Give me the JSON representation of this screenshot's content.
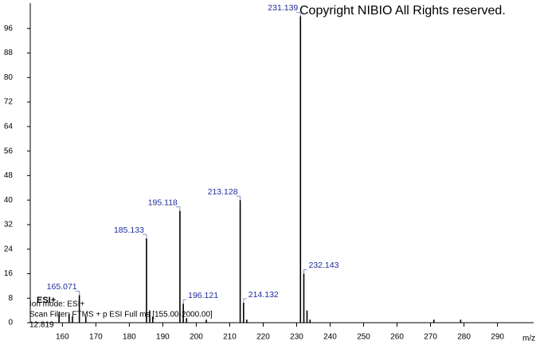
{
  "chart_data": {
    "type": "stem",
    "x_label": "m/z",
    "annotations": [
      "Copyright NIBIO All Rights reserved.",
      "ESI+",
      "Ion mode: ESI+",
      "Scan Filter: FTMS + p ESI Full ms [155.00-2000.00]",
      "12.819"
    ],
    "x": [
      165.071,
      185.133,
      195.118,
      196.121,
      213.128,
      214.132,
      231.139,
      232.143
    ],
    "values": [
      9,
      27.5,
      36.5,
      6.2,
      40,
      6.5,
      100,
      16
    ],
    "minor_peaks": {
      "x": [
        159,
        162,
        163,
        167,
        186.1,
        187,
        197.1,
        203,
        215.1,
        233.1,
        234,
        271,
        279
      ],
      "values": [
        3,
        3,
        2,
        2,
        4,
        2,
        1.5,
        1,
        1,
        4,
        1,
        1,
        1
      ]
    },
    "color": "#000000",
    "label_color": "#1f2d9c",
    "xlim": [
      150.4,
      300.8
    ],
    "xticks": [
      160,
      170,
      180,
      190,
      200,
      210,
      220,
      230,
      240,
      250,
      260,
      270,
      280,
      290
    ],
    "ylim": [
      0,
      104
    ],
    "yticks": [
      0,
      8,
      16,
      24,
      32,
      40,
      48,
      56,
      64,
      72,
      80,
      88,
      96
    ]
  }
}
